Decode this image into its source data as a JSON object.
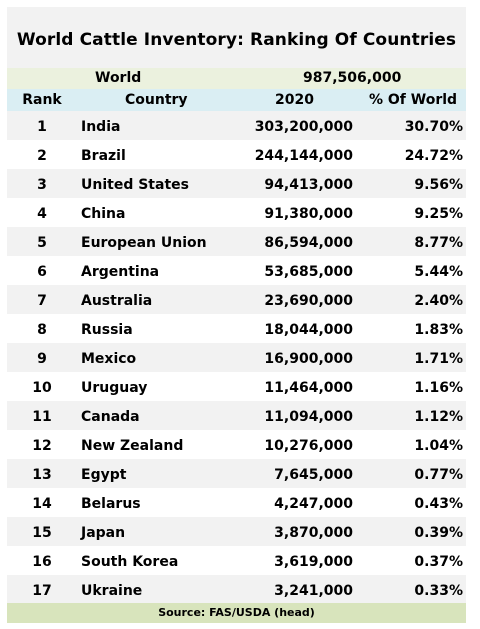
{
  "title": "World Cattle Inventory:  Ranking Of Countries",
  "world": {
    "label": "World",
    "value": "987,506,000"
  },
  "headers": {
    "rank": "Rank",
    "country": "Country",
    "year": "2020",
    "pct": "% Of World"
  },
  "source": "Source:  FAS/USDA (head)",
  "colors": {
    "world_row": "#ebf1de",
    "header_row": "#daeef3",
    "source_row": "#d8e4bc",
    "band": "#f2f2f2"
  },
  "chart_data": {
    "type": "table",
    "title": "World Cattle Inventory:  Ranking Of Countries",
    "columns": [
      "Rank",
      "Country",
      "2020",
      "% Of World"
    ],
    "rows": [
      [
        "1",
        "India",
        "303,200,000",
        "30.70%"
      ],
      [
        "2",
        "Brazil",
        "244,144,000",
        "24.72%"
      ],
      [
        "3",
        "United States",
        "94,413,000",
        "9.56%"
      ],
      [
        "4",
        "China",
        "91,380,000",
        "9.25%"
      ],
      [
        "5",
        "European Union",
        "86,594,000",
        "8.77%"
      ],
      [
        "6",
        "Argentina",
        "53,685,000",
        "5.44%"
      ],
      [
        "7",
        "Australia",
        "23,690,000",
        "2.40%"
      ],
      [
        "8",
        "Russia",
        "18,044,000",
        "1.83%"
      ],
      [
        "9",
        "Mexico",
        "16,900,000",
        "1.71%"
      ],
      [
        "10",
        "Uruguay",
        "11,464,000",
        "1.16%"
      ],
      [
        "11",
        "Canada",
        "11,094,000",
        "1.12%"
      ],
      [
        "12",
        "New Zealand",
        "10,276,000",
        "1.04%"
      ],
      [
        "13",
        "Egypt",
        "7,645,000",
        "0.77%"
      ],
      [
        "14",
        "Belarus",
        "4,247,000",
        "0.43%"
      ],
      [
        "15",
        "Japan",
        "3,870,000",
        "0.39%"
      ],
      [
        "16",
        "South Korea",
        "3,619,000",
        "0.37%"
      ],
      [
        "17",
        "Ukraine",
        "3,241,000",
        "0.33%"
      ]
    ]
  }
}
